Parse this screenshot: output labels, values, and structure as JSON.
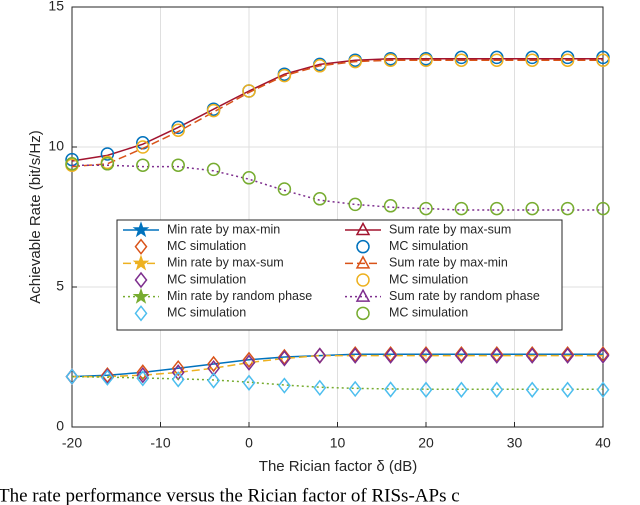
{
  "chart_data": {
    "type": "line",
    "xlabel": "The Rician factor δ (dB)",
    "ylabel": "Achievable Rate (bit/s/Hz)",
    "caption": "The rate performance versus the Rician factor of RISs-APs c",
    "x": [
      -20,
      -16,
      -12,
      -8,
      -4,
      0,
      4,
      8,
      12,
      16,
      20,
      24,
      28,
      32,
      36,
      40
    ],
    "xlim": [
      -20,
      40
    ],
    "xticks": [
      -20,
      -10,
      0,
      10,
      20,
      30,
      40
    ],
    "ylim": [
      0,
      15
    ],
    "yticks": [
      0,
      5,
      10,
      15
    ],
    "grid": true,
    "series": [
      {
        "name": "Min rate by max-min",
        "color": "#0072BD",
        "line": "solid",
        "marker": "star",
        "values": [
          1.8,
          1.85,
          1.95,
          2.1,
          2.25,
          2.4,
          2.5,
          2.55,
          2.6,
          2.6,
          2.6,
          2.6,
          2.6,
          2.6,
          2.6,
          2.6
        ]
      },
      {
        "name": "MC simulation",
        "color": "#D95319",
        "line": "none",
        "marker": "diamond",
        "values": [
          1.8,
          1.85,
          1.95,
          2.1,
          2.25,
          2.4,
          2.5,
          2.55,
          2.6,
          2.6,
          2.6,
          2.6,
          2.6,
          2.6,
          2.6,
          2.6
        ]
      },
      {
        "name": "Min rate by max-sum",
        "color": "#EDB120",
        "line": "dashed",
        "marker": "star",
        "values": [
          1.8,
          1.8,
          1.85,
          1.95,
          2.1,
          2.3,
          2.45,
          2.55,
          2.55,
          2.55,
          2.55,
          2.55,
          2.55,
          2.55,
          2.55,
          2.55
        ]
      },
      {
        "name": "MC simulation",
        "color": "#7E2F8E",
        "line": "none",
        "marker": "diamond",
        "values": [
          1.8,
          1.8,
          1.85,
          1.95,
          2.1,
          2.3,
          2.45,
          2.55,
          2.55,
          2.55,
          2.55,
          2.55,
          2.55,
          2.55,
          2.55,
          2.55
        ]
      },
      {
        "name": "Min rate by random phase",
        "color": "#77AC30",
        "line": "dotted",
        "marker": "star",
        "values": [
          1.8,
          1.78,
          1.75,
          1.72,
          1.68,
          1.6,
          1.5,
          1.42,
          1.38,
          1.36,
          1.35,
          1.35,
          1.35,
          1.35,
          1.35,
          1.35
        ]
      },
      {
        "name": "MC simulation",
        "color": "#4DBEEE",
        "line": "none",
        "marker": "diamond",
        "values": [
          1.8,
          1.76,
          1.74,
          1.7,
          1.66,
          1.58,
          1.48,
          1.4,
          1.36,
          1.34,
          1.33,
          1.33,
          1.33,
          1.33,
          1.33,
          1.33
        ]
      },
      {
        "name": "Sum rate by max-sum",
        "color": "#A2142F",
        "line": "solid",
        "marker": "triangle",
        "values": [
          9.5,
          9.7,
          10.1,
          10.7,
          11.35,
          12.0,
          12.6,
          12.95,
          13.1,
          13.15,
          13.15,
          13.15,
          13.15,
          13.15,
          13.15,
          13.15
        ]
      },
      {
        "name": "MC simulation",
        "color": "#0072BD",
        "line": "none",
        "marker": "circle",
        "values": [
          9.55,
          9.75,
          10.15,
          10.7,
          11.35,
          12.0,
          12.6,
          12.95,
          13.1,
          13.15,
          13.15,
          13.2,
          13.2,
          13.2,
          13.2,
          13.2
        ]
      },
      {
        "name": "Sum rate by max-min",
        "color": "#D95319",
        "line": "dashed",
        "marker": "triangle",
        "values": [
          9.3,
          9.4,
          9.95,
          10.55,
          11.25,
          11.95,
          12.55,
          12.9,
          13.05,
          13.1,
          13.1,
          13.1,
          13.1,
          13.1,
          13.1,
          13.1
        ]
      },
      {
        "name": "MC simulation",
        "color": "#EDB120",
        "line": "none",
        "marker": "circle",
        "values": [
          9.35,
          9.45,
          10.0,
          10.6,
          11.3,
          12.0,
          12.55,
          12.9,
          13.05,
          13.1,
          13.1,
          13.1,
          13.1,
          13.1,
          13.1,
          13.1
        ]
      },
      {
        "name": "Sum rate by random phase",
        "color": "#7E2F8E",
        "line": "dotted",
        "marker": "triangle",
        "values": [
          9.35,
          9.35,
          9.3,
          9.3,
          9.15,
          8.85,
          8.45,
          8.1,
          7.95,
          7.85,
          7.8,
          7.75,
          7.75,
          7.75,
          7.75,
          7.75
        ]
      },
      {
        "name": "MC simulation",
        "color": "#77AC30",
        "line": "none",
        "marker": "circle",
        "values": [
          9.4,
          9.4,
          9.35,
          9.35,
          9.2,
          8.9,
          8.5,
          8.15,
          7.95,
          7.9,
          7.8,
          7.8,
          7.8,
          7.8,
          7.8,
          7.8
        ]
      }
    ]
  }
}
